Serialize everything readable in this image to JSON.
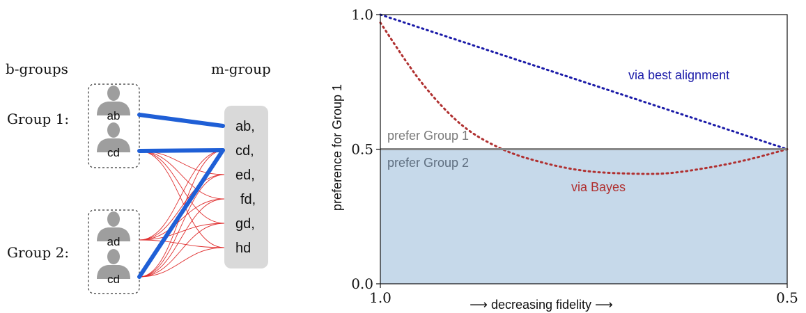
{
  "diagram": {
    "b_groups_label": "b-groups",
    "m_group_label": "m-group",
    "groups": [
      {
        "label": "Group 1:",
        "members": [
          "ab",
          "cd"
        ]
      },
      {
        "label": "Group 2:",
        "members": [
          "ad",
          "cd"
        ]
      }
    ],
    "m_group_items": [
      "ab,",
      "cd,",
      "ed,",
      "fd,",
      "gd,",
      "hd"
    ],
    "colors": {
      "strong_link": "#1f5fd6",
      "weak_link": "#e03030",
      "m_group_box": "#d9d9d9",
      "avatar": "#9e9e9e"
    }
  },
  "chart_data": {
    "type": "line",
    "xlabel": "⟶ decreasing fidelity ⟶",
    "ylabel": "preference for Group 1",
    "xlim": [
      1.0,
      0.5
    ],
    "ylim": [
      0.0,
      1.0
    ],
    "x_ticks": [
      "1.0",
      "0.5"
    ],
    "y_ticks": [
      "0.0",
      "0.5",
      "1.0"
    ],
    "grid": false,
    "threshold": {
      "value": 0.5,
      "above_label": "prefer Group 1",
      "below_label": "prefer Group 2",
      "line_color": "#888888",
      "fill_color": "#c6d9ea"
    },
    "series": [
      {
        "name": "via best alignment",
        "color": "#1a1aa8",
        "style": "dotted",
        "x": [
          1.0,
          0.5
        ],
        "y": [
          1.0,
          0.5
        ]
      },
      {
        "name": "via Bayes",
        "color": "#b03030",
        "style": "dotted",
        "x": [
          1.0,
          0.95,
          0.9,
          0.85,
          0.8,
          0.75,
          0.7,
          0.65,
          0.6,
          0.55,
          0.5
        ],
        "y": [
          0.97,
          0.75,
          0.59,
          0.5,
          0.45,
          0.42,
          0.41,
          0.41,
          0.43,
          0.46,
          0.5
        ]
      }
    ]
  }
}
